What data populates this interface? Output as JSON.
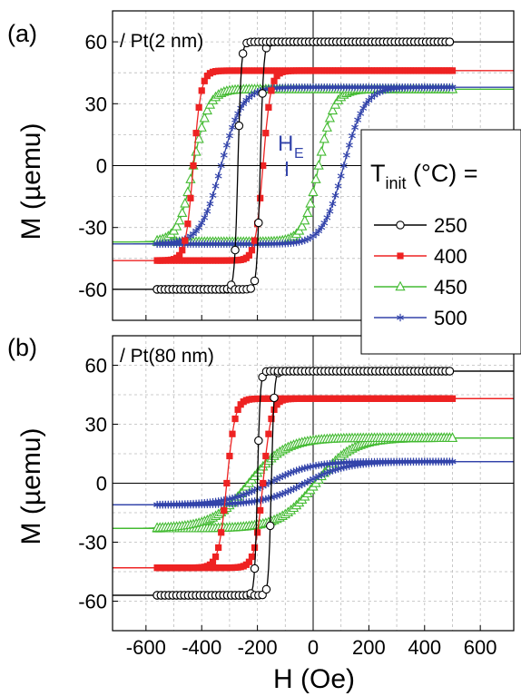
{
  "panels": [
    {
      "id": "a",
      "panel_label": "(a)",
      "sample_label": "/ Pt(2 nm)",
      "annotation": "H",
      "annotation_sub": "E"
    },
    {
      "id": "b",
      "panel_label": "(b)",
      "sample_label": "/ Pt(80 nm)"
    }
  ],
  "legend": {
    "title_main": "T",
    "title_sub": "init",
    "title_rest": " (°C) =",
    "entries": [
      {
        "label": "250",
        "color": "#000000",
        "marker": "circle"
      },
      {
        "label": "400",
        "color": "#ee2222",
        "marker": "square"
      },
      {
        "label": "450",
        "color": "#44bb33",
        "marker": "triangle"
      },
      {
        "label": "500",
        "color": "#3344aa",
        "marker": "star"
      }
    ]
  },
  "chart_data": [
    {
      "type": "line",
      "panel": "(a)",
      "xlabel": "H (Oe)",
      "ylabel": "M (µemu)",
      "xlim": [
        -720,
        720
      ],
      "ylim": [
        -75,
        75
      ],
      "yticks": [
        -60,
        -30,
        0,
        30,
        60
      ],
      "grid": true,
      "series": [
        {
          "name": "250",
          "Hc_left": -270,
          "Hc_right": -190,
          "Ms": 60,
          "width": 12
        },
        {
          "name": "400",
          "Hc_left": -430,
          "Hc_right": -180,
          "Ms": 46,
          "width": 28
        },
        {
          "name": "450",
          "Hc_left": -430,
          "Hc_right": 20,
          "Ms": 37,
          "width": 55
        },
        {
          "name": "500",
          "Hc_left": -330,
          "Hc_right": 110,
          "Ms": 38,
          "width": 75
        }
      ]
    },
    {
      "type": "line",
      "panel": "(b)",
      "xlabel": "H (Oe)",
      "ylabel": "M (µemu)",
      "xlim": [
        -720,
        720
      ],
      "ylim": [
        -75,
        75
      ],
      "xticks": [
        -600,
        -400,
        -200,
        0,
        200,
        400,
        600
      ],
      "yticks": [
        -60,
        -30,
        0,
        30,
        60
      ],
      "grid": true,
      "series": [
        {
          "name": "250",
          "Hc_left": -200,
          "Hc_right": -150,
          "Ms": 57,
          "width": 10
        },
        {
          "name": "400",
          "Hc_left": -310,
          "Hc_right": -180,
          "Ms": 43,
          "width": 30
        },
        {
          "name": "450",
          "Hc_left": -230,
          "Hc_right": 10,
          "Ms": 23,
          "width": 130
        },
        {
          "name": "500",
          "Hc_left": -160,
          "Hc_right": -30,
          "Ms": 11,
          "width": 150
        }
      ]
    }
  ]
}
